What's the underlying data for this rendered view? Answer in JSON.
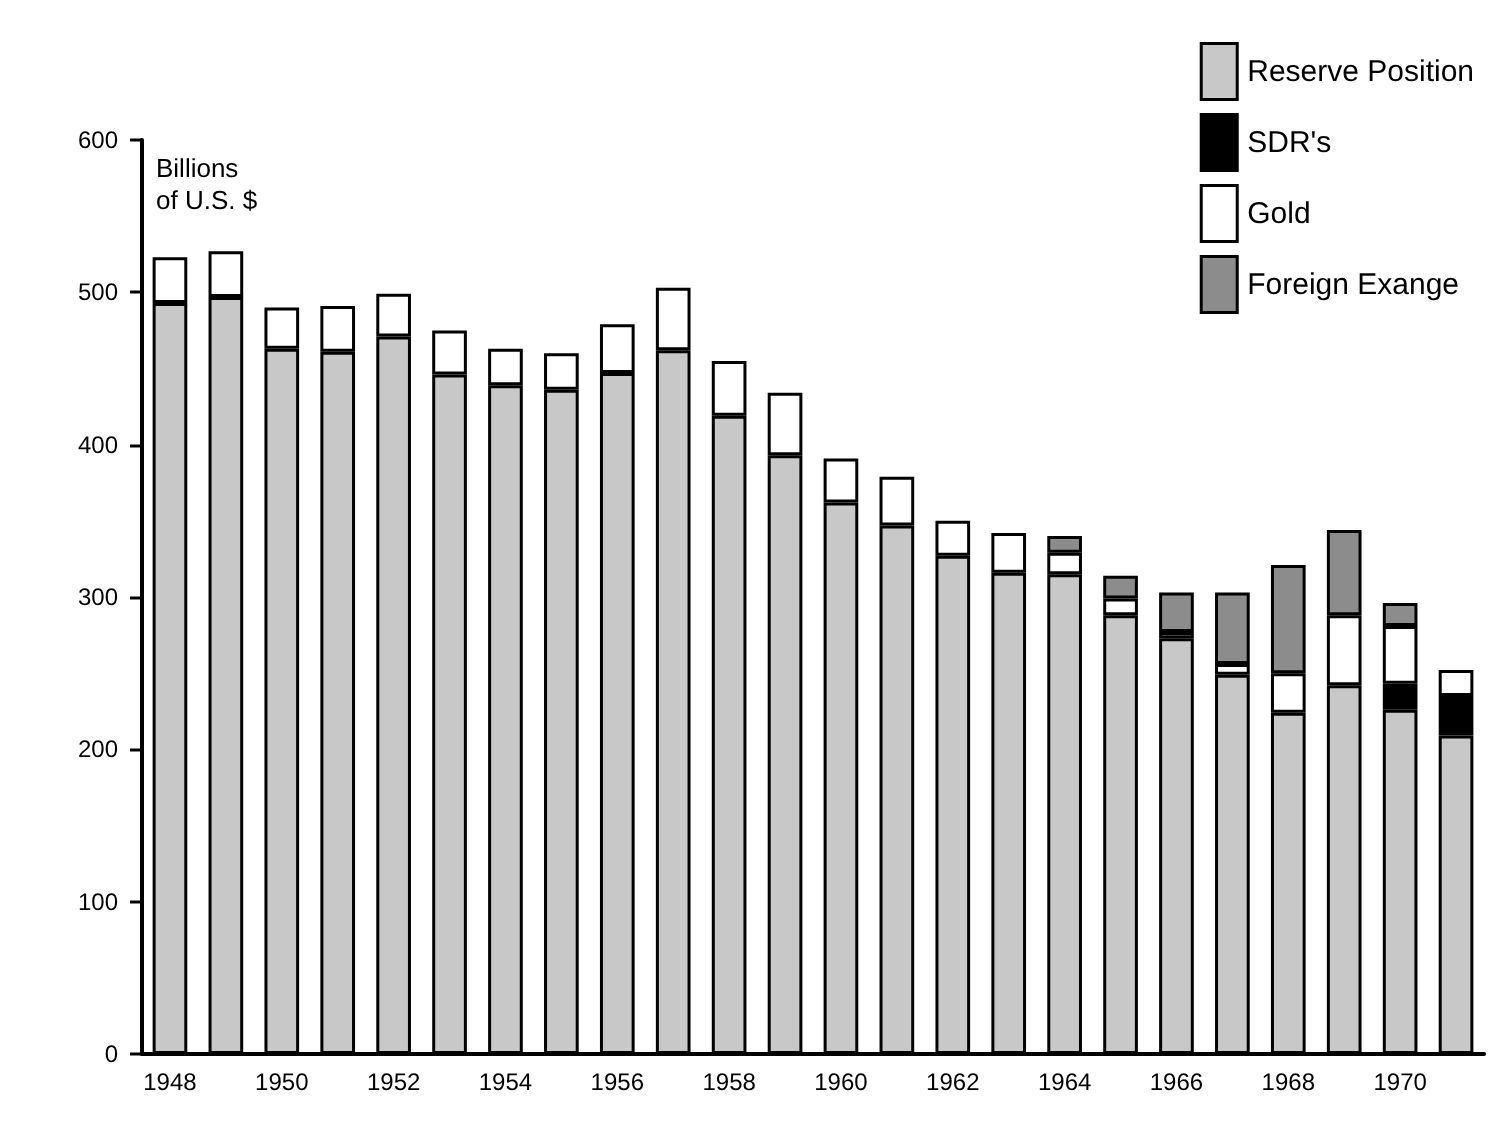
{
  "chart_data": {
    "type": "bar",
    "stacked": true,
    "ylabel": "Billions\nof U.S. $",
    "categories": [
      "1948",
      null,
      "1950",
      null,
      "1952",
      null,
      "1954",
      null,
      "1956",
      null,
      "1958",
      null,
      "1960",
      null,
      "1962",
      null,
      "1964",
      null,
      "1966",
      null,
      "1968",
      null,
      "1970",
      null
    ],
    "series": [
      {
        "name": "Reserve Position",
        "color": "#c8c8c8",
        "values": [
          493,
          497,
          463,
          461,
          471,
          446,
          439,
          436,
          447,
          462,
          419,
          393,
          362,
          347,
          327,
          316,
          315,
          288,
          273,
          249,
          224,
          242,
          226,
          209
        ]
      },
      {
        "name": "SDR's",
        "color": "#000000",
        "values": [
          null,
          null,
          null,
          null,
          null,
          null,
          null,
          null,
          null,
          null,
          null,
          null,
          null,
          null,
          null,
          null,
          null,
          null,
          null,
          null,
          null,
          null,
          17,
          26
        ]
      },
      {
        "name": "Gold",
        "color": "#ffffff",
        "values": [
          30,
          30,
          27,
          30,
          28,
          29,
          24,
          24,
          32,
          41,
          36,
          41,
          29,
          32,
          23,
          26,
          14,
          11,
          4,
          7,
          26,
          46,
          38,
          17
        ]
      },
      {
        "name": "Foreign Exange",
        "color": "#8c8c8c",
        "values": [
          null,
          null,
          null,
          null,
          null,
          null,
          null,
          null,
          null,
          null,
          null,
          null,
          null,
          null,
          null,
          null,
          11,
          15,
          26,
          47,
          71,
          56,
          15,
          null
        ]
      }
    ],
    "ylim": [
      0,
      600
    ],
    "yticks": [
      0,
      100,
      200,
      300,
      400,
      500,
      600
    ],
    "grid": false,
    "legend": "top right"
  }
}
